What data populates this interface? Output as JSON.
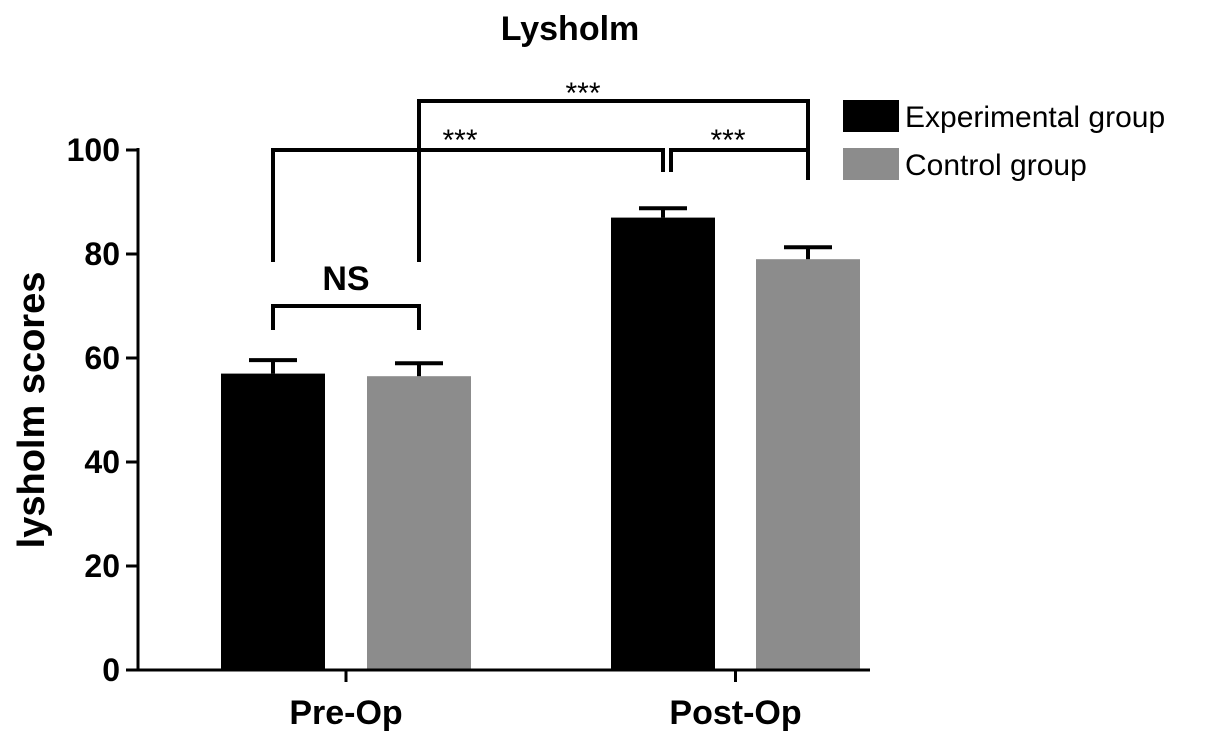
{
  "chart_data": {
    "type": "bar",
    "title": "Lysholm",
    "xlabel": "",
    "ylabel": "lysholm scores",
    "categories": [
      "Pre-Op",
      "Post-Op"
    ],
    "series": [
      {
        "name": "Experimental group",
        "color": "#000000",
        "values": [
          57,
          87
        ],
        "errors": [
          2.6,
          1.8
        ]
      },
      {
        "name": "Control group",
        "color": "#8c8c8c",
        "values": [
          56.5,
          79
        ],
        "errors": [
          2.5,
          2.3
        ]
      }
    ],
    "ylim": [
      0,
      100
    ],
    "yticks": [
      "0",
      "20",
      "40",
      "60",
      "80",
      "100"
    ],
    "legend_position": "top-right",
    "grid": false,
    "significance": [
      {
        "label": "NS",
        "from": "Pre-Op Experimental group",
        "to": "Pre-Op Control group"
      },
      {
        "label": "***",
        "from": "Pre-Op Experimental group",
        "to": "Post-Op Experimental group"
      },
      {
        "label": "***",
        "from": "Pre-Op Control group",
        "to": "Post-Op Control group"
      },
      {
        "label": "***",
        "from": "Post-Op Experimental group",
        "to": "Post-Op Control group"
      }
    ]
  }
}
